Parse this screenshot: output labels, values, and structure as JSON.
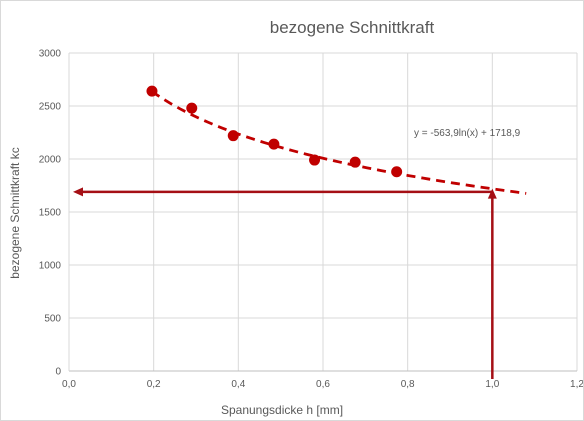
{
  "chart_data": {
    "type": "scatter",
    "title": "bezogene Schnittkraft",
    "xlabel": "Spanungsdicke h [mm]",
    "ylabel": "bezogene Schnittkraft kc",
    "xlim": [
      0,
      1.2
    ],
    "ylim": [
      0,
      3000
    ],
    "x_ticks": [
      0,
      0.2,
      0.4,
      0.6,
      0.8,
      1.0,
      1.2
    ],
    "x_tick_labels": [
      "0,0",
      "0,2",
      "0,4",
      "0,6",
      "0,8",
      "1,0",
      "1,2"
    ],
    "y_ticks": [
      0,
      500,
      1000,
      1500,
      2000,
      2500,
      3000
    ],
    "y_tick_labels": [
      "0",
      "500",
      "1000",
      "1500",
      "2000",
      "2500",
      "3000"
    ],
    "grid": true,
    "series": [
      {
        "x": [
          0.196,
          0.29,
          0.388,
          0.484,
          0.58,
          0.676,
          0.774
        ],
        "y": [
          2640,
          2480,
          2220,
          2140,
          1990,
          1970,
          1880
        ],
        "color": "#c00000"
      }
    ],
    "trendline": {
      "type": "logarithmic",
      "a": -563.9,
      "b": 1718.9,
      "x_range": [
        0.196,
        1.08
      ],
      "equation_label": "y = -563,9ln(x) + 1718,9",
      "color": "#c00000"
    },
    "annotations": {
      "vertical_arrow": {
        "x": 1.0,
        "y_from": 0,
        "y_to": 1720
      },
      "horizontal_arrow": {
        "y": 1690,
        "x_from": 1.0,
        "x_to": 0
      },
      "color": "#a50f15"
    }
  }
}
